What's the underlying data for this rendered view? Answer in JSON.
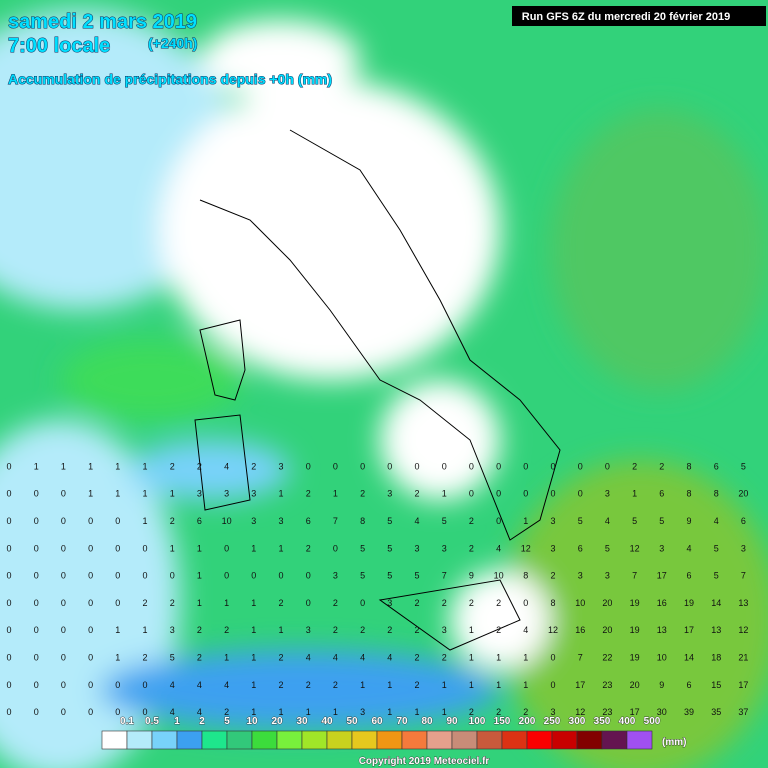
{
  "map": {
    "title": "samedi 2 mars 2019",
    "time": "7:00 locale",
    "lead": "(+240h)",
    "subtitle": "Accumulation de précipitations depuis +0h (mm)",
    "run": "Run GFS 6Z du mercredi 20 février 2019",
    "copyright": "Copyright 2019 Meteociel.fr",
    "legend": {
      "labels": [
        "0.1",
        "0.5",
        "1",
        "2",
        "5",
        "10",
        "20",
        "30",
        "40",
        "50",
        "60",
        "70",
        "80",
        "90",
        "100",
        "150",
        "200",
        "250",
        "300",
        "350",
        "400",
        "500"
      ],
      "unit": "(mm)",
      "colors": [
        "#ffffff",
        "#b4ebfa",
        "#78d2fa",
        "#3ca0f0",
        "#1ee68c",
        "#32c87a",
        "#3cdc3c",
        "#78f03c",
        "#a0e628",
        "#c8d21e",
        "#e6c81e",
        "#f09614",
        "#f57a3c",
        "#e6a08c",
        "#c88c78",
        "#c85a3c",
        "#dc3214",
        "#fa0000",
        "#c80000",
        "#820000",
        "#641450",
        "#a050f0"
      ]
    },
    "grid": [
      [
        "0",
        "1",
        "1",
        "1",
        "1",
        "1",
        "2",
        "2",
        "4",
        "2",
        "3",
        "0",
        "0",
        "0",
        "0",
        "0",
        "0",
        "0",
        "0",
        "0",
        "0",
        "0",
        "0",
        "2",
        "2",
        "8",
        "6",
        "5"
      ],
      [
        "0",
        "0",
        "0",
        "1",
        "1",
        "1",
        "1",
        "3",
        "3",
        "3",
        "1",
        "2",
        "1",
        "2",
        "3",
        "2",
        "1",
        "0",
        "0",
        "0",
        "0",
        "0",
        "3",
        "1",
        "6",
        "8",
        "8",
        "20"
      ],
      [
        "0",
        "0",
        "0",
        "0",
        "0",
        "1",
        "2",
        "6",
        "10",
        "3",
        "3",
        "6",
        "7",
        "8",
        "5",
        "4",
        "5",
        "2",
        "0",
        "1",
        "3",
        "5",
        "4",
        "5",
        "5",
        "9",
        "4",
        "6"
      ],
      [
        "0",
        "0",
        "0",
        "0",
        "0",
        "0",
        "1",
        "1",
        "0",
        "1",
        "1",
        "2",
        "0",
        "5",
        "5",
        "3",
        "3",
        "2",
        "4",
        "12",
        "3",
        "6",
        "5",
        "12",
        "3",
        "4",
        "5",
        "3"
      ],
      [
        "0",
        "0",
        "0",
        "0",
        "0",
        "0",
        "0",
        "1",
        "0",
        "0",
        "0",
        "0",
        "3",
        "5",
        "5",
        "5",
        "7",
        "9",
        "10",
        "8",
        "2",
        "3",
        "3",
        "7",
        "17",
        "6",
        "5",
        "7"
      ],
      [
        "0",
        "0",
        "0",
        "0",
        "0",
        "2",
        "2",
        "1",
        "1",
        "1",
        "2",
        "0",
        "2",
        "0",
        "3",
        "2",
        "2",
        "2",
        "2",
        "0",
        "8",
        "10",
        "20",
        "19",
        "16",
        "19",
        "14",
        "13"
      ],
      [
        "0",
        "0",
        "0",
        "0",
        "1",
        "1",
        "3",
        "2",
        "2",
        "1",
        "1",
        "3",
        "2",
        "2",
        "2",
        "2",
        "3",
        "1",
        "2",
        "4",
        "12",
        "16",
        "20",
        "19",
        "13",
        "17",
        "13",
        "12"
      ],
      [
        "0",
        "0",
        "0",
        "0",
        "1",
        "2",
        "5",
        "2",
        "1",
        "1",
        "2",
        "4",
        "4",
        "4",
        "4",
        "2",
        "2",
        "1",
        "1",
        "1",
        "0",
        "7",
        "22",
        "19",
        "10",
        "14",
        "18",
        "21"
      ],
      [
        "0",
        "0",
        "0",
        "0",
        "0",
        "0",
        "4",
        "4",
        "4",
        "1",
        "2",
        "2",
        "2",
        "1",
        "1",
        "2",
        "1",
        "1",
        "1",
        "1",
        "0",
        "17",
        "23",
        "20",
        "9",
        "6",
        "15",
        "17"
      ],
      [
        "0",
        "0",
        "0",
        "0",
        "0",
        "0",
        "4",
        "4",
        "2",
        "1",
        "1",
        "1",
        "1",
        "3",
        "1",
        "1",
        "1",
        "2",
        "2",
        "2",
        "3",
        "12",
        "23",
        "17",
        "30",
        "39",
        "35",
        "37"
      ]
    ]
  }
}
